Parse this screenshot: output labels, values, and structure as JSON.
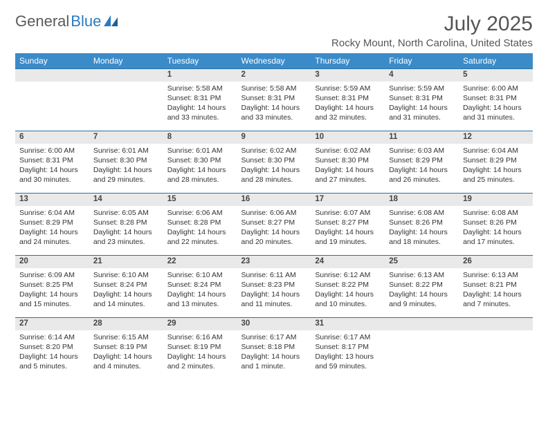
{
  "brand": {
    "part1": "General",
    "part2": "Blue"
  },
  "header": {
    "month_title": "July 2025",
    "location": "Rocky Mount, North Carolina, United States"
  },
  "colors": {
    "header_bg": "#3b8bc9",
    "header_text": "#ffffff",
    "daynum_bg": "#e9e9e9",
    "border": "#2a6ea8",
    "body_text": "#333333",
    "title_text": "#555555",
    "brand_gray": "#5a5a5a",
    "brand_blue": "#2a7cc0"
  },
  "weekdays": [
    "Sunday",
    "Monday",
    "Tuesday",
    "Wednesday",
    "Thursday",
    "Friday",
    "Saturday"
  ],
  "weeks": [
    [
      null,
      null,
      {
        "n": "1",
        "sr": "Sunrise: 5:58 AM",
        "ss": "Sunset: 8:31 PM",
        "d1": "Daylight: 14 hours",
        "d2": "and 33 minutes."
      },
      {
        "n": "2",
        "sr": "Sunrise: 5:58 AM",
        "ss": "Sunset: 8:31 PM",
        "d1": "Daylight: 14 hours",
        "d2": "and 33 minutes."
      },
      {
        "n": "3",
        "sr": "Sunrise: 5:59 AM",
        "ss": "Sunset: 8:31 PM",
        "d1": "Daylight: 14 hours",
        "d2": "and 32 minutes."
      },
      {
        "n": "4",
        "sr": "Sunrise: 5:59 AM",
        "ss": "Sunset: 8:31 PM",
        "d1": "Daylight: 14 hours",
        "d2": "and 31 minutes."
      },
      {
        "n": "5",
        "sr": "Sunrise: 6:00 AM",
        "ss": "Sunset: 8:31 PM",
        "d1": "Daylight: 14 hours",
        "d2": "and 31 minutes."
      }
    ],
    [
      {
        "n": "6",
        "sr": "Sunrise: 6:00 AM",
        "ss": "Sunset: 8:31 PM",
        "d1": "Daylight: 14 hours",
        "d2": "and 30 minutes."
      },
      {
        "n": "7",
        "sr": "Sunrise: 6:01 AM",
        "ss": "Sunset: 8:30 PM",
        "d1": "Daylight: 14 hours",
        "d2": "and 29 minutes."
      },
      {
        "n": "8",
        "sr": "Sunrise: 6:01 AM",
        "ss": "Sunset: 8:30 PM",
        "d1": "Daylight: 14 hours",
        "d2": "and 28 minutes."
      },
      {
        "n": "9",
        "sr": "Sunrise: 6:02 AM",
        "ss": "Sunset: 8:30 PM",
        "d1": "Daylight: 14 hours",
        "d2": "and 28 minutes."
      },
      {
        "n": "10",
        "sr": "Sunrise: 6:02 AM",
        "ss": "Sunset: 8:30 PM",
        "d1": "Daylight: 14 hours",
        "d2": "and 27 minutes."
      },
      {
        "n": "11",
        "sr": "Sunrise: 6:03 AM",
        "ss": "Sunset: 8:29 PM",
        "d1": "Daylight: 14 hours",
        "d2": "and 26 minutes."
      },
      {
        "n": "12",
        "sr": "Sunrise: 6:04 AM",
        "ss": "Sunset: 8:29 PM",
        "d1": "Daylight: 14 hours",
        "d2": "and 25 minutes."
      }
    ],
    [
      {
        "n": "13",
        "sr": "Sunrise: 6:04 AM",
        "ss": "Sunset: 8:29 PM",
        "d1": "Daylight: 14 hours",
        "d2": "and 24 minutes."
      },
      {
        "n": "14",
        "sr": "Sunrise: 6:05 AM",
        "ss": "Sunset: 8:28 PM",
        "d1": "Daylight: 14 hours",
        "d2": "and 23 minutes."
      },
      {
        "n": "15",
        "sr": "Sunrise: 6:06 AM",
        "ss": "Sunset: 8:28 PM",
        "d1": "Daylight: 14 hours",
        "d2": "and 22 minutes."
      },
      {
        "n": "16",
        "sr": "Sunrise: 6:06 AM",
        "ss": "Sunset: 8:27 PM",
        "d1": "Daylight: 14 hours",
        "d2": "and 20 minutes."
      },
      {
        "n": "17",
        "sr": "Sunrise: 6:07 AM",
        "ss": "Sunset: 8:27 PM",
        "d1": "Daylight: 14 hours",
        "d2": "and 19 minutes."
      },
      {
        "n": "18",
        "sr": "Sunrise: 6:08 AM",
        "ss": "Sunset: 8:26 PM",
        "d1": "Daylight: 14 hours",
        "d2": "and 18 minutes."
      },
      {
        "n": "19",
        "sr": "Sunrise: 6:08 AM",
        "ss": "Sunset: 8:26 PM",
        "d1": "Daylight: 14 hours",
        "d2": "and 17 minutes."
      }
    ],
    [
      {
        "n": "20",
        "sr": "Sunrise: 6:09 AM",
        "ss": "Sunset: 8:25 PM",
        "d1": "Daylight: 14 hours",
        "d2": "and 15 minutes."
      },
      {
        "n": "21",
        "sr": "Sunrise: 6:10 AM",
        "ss": "Sunset: 8:24 PM",
        "d1": "Daylight: 14 hours",
        "d2": "and 14 minutes."
      },
      {
        "n": "22",
        "sr": "Sunrise: 6:10 AM",
        "ss": "Sunset: 8:24 PM",
        "d1": "Daylight: 14 hours",
        "d2": "and 13 minutes."
      },
      {
        "n": "23",
        "sr": "Sunrise: 6:11 AM",
        "ss": "Sunset: 8:23 PM",
        "d1": "Daylight: 14 hours",
        "d2": "and 11 minutes."
      },
      {
        "n": "24",
        "sr": "Sunrise: 6:12 AM",
        "ss": "Sunset: 8:22 PM",
        "d1": "Daylight: 14 hours",
        "d2": "and 10 minutes."
      },
      {
        "n": "25",
        "sr": "Sunrise: 6:13 AM",
        "ss": "Sunset: 8:22 PM",
        "d1": "Daylight: 14 hours",
        "d2": "and 9 minutes."
      },
      {
        "n": "26",
        "sr": "Sunrise: 6:13 AM",
        "ss": "Sunset: 8:21 PM",
        "d1": "Daylight: 14 hours",
        "d2": "and 7 minutes."
      }
    ],
    [
      {
        "n": "27",
        "sr": "Sunrise: 6:14 AM",
        "ss": "Sunset: 8:20 PM",
        "d1": "Daylight: 14 hours",
        "d2": "and 5 minutes."
      },
      {
        "n": "28",
        "sr": "Sunrise: 6:15 AM",
        "ss": "Sunset: 8:19 PM",
        "d1": "Daylight: 14 hours",
        "d2": "and 4 minutes."
      },
      {
        "n": "29",
        "sr": "Sunrise: 6:16 AM",
        "ss": "Sunset: 8:19 PM",
        "d1": "Daylight: 14 hours",
        "d2": "and 2 minutes."
      },
      {
        "n": "30",
        "sr": "Sunrise: 6:17 AM",
        "ss": "Sunset: 8:18 PM",
        "d1": "Daylight: 14 hours",
        "d2": "and 1 minute."
      },
      {
        "n": "31",
        "sr": "Sunrise: 6:17 AM",
        "ss": "Sunset: 8:17 PM",
        "d1": "Daylight: 13 hours",
        "d2": "and 59 minutes."
      },
      null,
      null
    ]
  ]
}
